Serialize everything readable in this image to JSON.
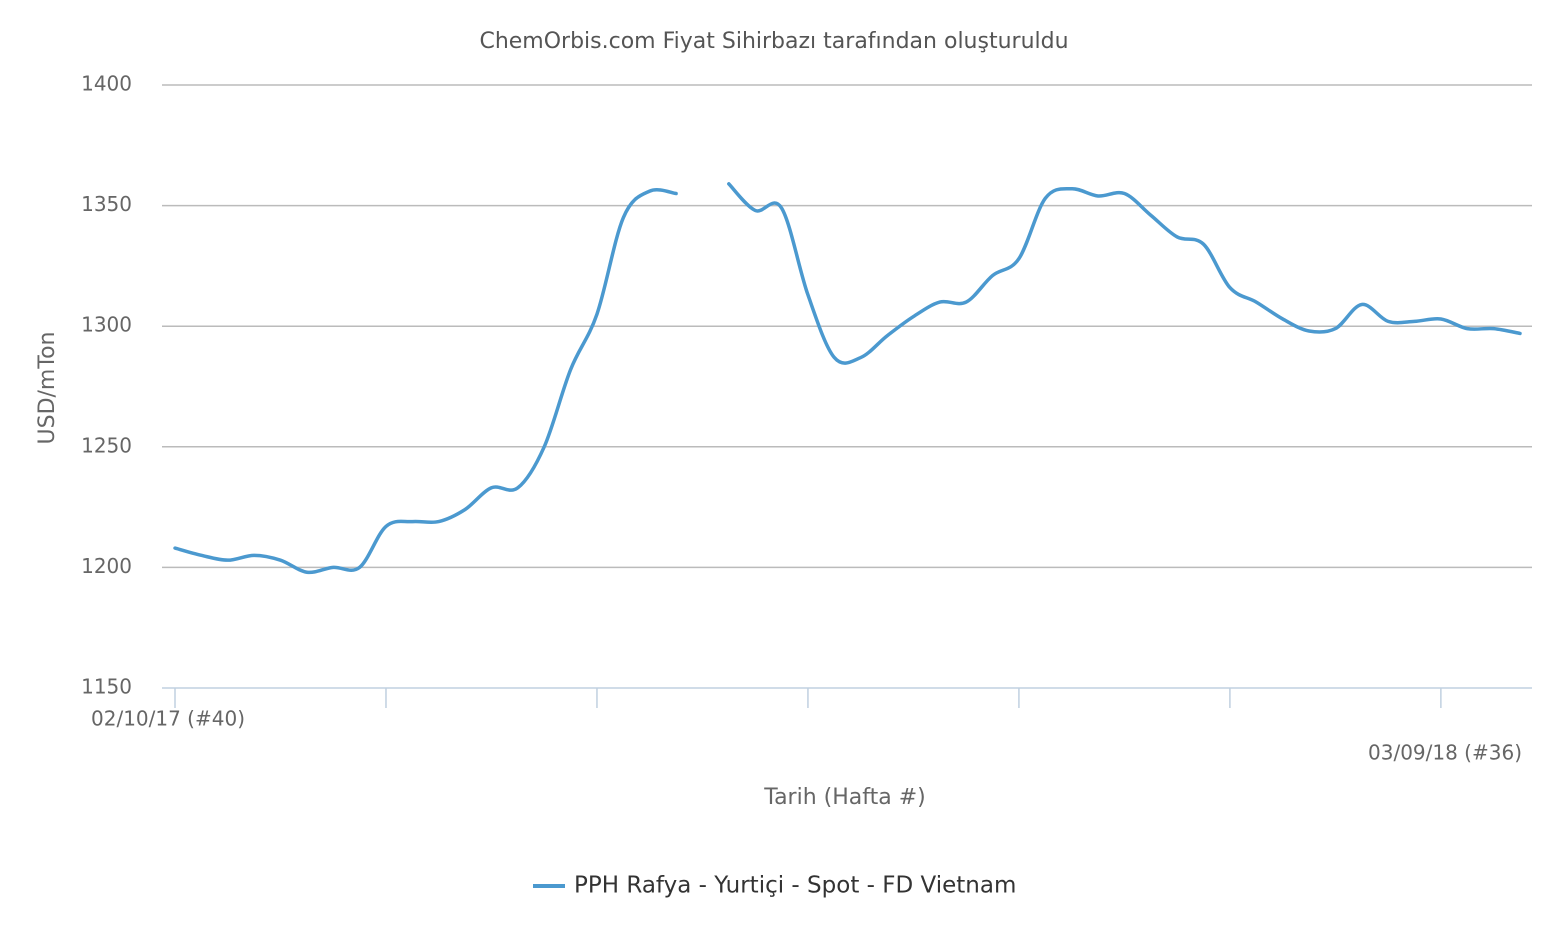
{
  "chart_data": {
    "type": "line",
    "title": "ChemOrbis.com Fiyat Sihirbazı tarafından oluşturuldu",
    "x_label": "Tarih (Hafta #)",
    "y_label": "USD/mTon",
    "categories": [
      "02/10/17 (#40)",
      null,
      null,
      null,
      null,
      null,
      null,
      null,
      null,
      null,
      null,
      null,
      null,
      null,
      null,
      null,
      null,
      null,
      null,
      null,
      null,
      null,
      null,
      null,
      null,
      null,
      null,
      null,
      null,
      null,
      null,
      null,
      null,
      null,
      null,
      null,
      null,
      null,
      null,
      null,
      null,
      null,
      null,
      null,
      null,
      null,
      null,
      null,
      null,
      null,
      null,
      "03/09/18 (#36)"
    ],
    "series": [
      {
        "name": "PPH Rafya - Yurtiçi - Spot - FD Vietnam",
        "color": "#4b99cf",
        "values": [
          1208,
          1205,
          1203,
          1205,
          1203,
          1198,
          1200,
          1200,
          1217,
          1219,
          1219,
          1224,
          1233,
          1233,
          1250,
          1282,
          1305,
          1345,
          1356,
          1355,
          null,
          1359,
          1348,
          1349,
          1313,
          1287,
          1287,
          1296,
          1304,
          1310,
          1310,
          1321,
          1328,
          1353,
          1357,
          1354,
          1355,
          1346,
          1337,
          1334,
          1316,
          1310,
          1303,
          1298,
          1299,
          1309,
          1302,
          1302,
          1303,
          1299,
          1299,
          1297
        ]
      }
    ],
    "ylim": [
      1150,
      1400
    ],
    "yticks": [
      1150,
      1200,
      1250,
      1300,
      1350,
      1400
    ],
    "grid": true,
    "legend": "bottom"
  }
}
